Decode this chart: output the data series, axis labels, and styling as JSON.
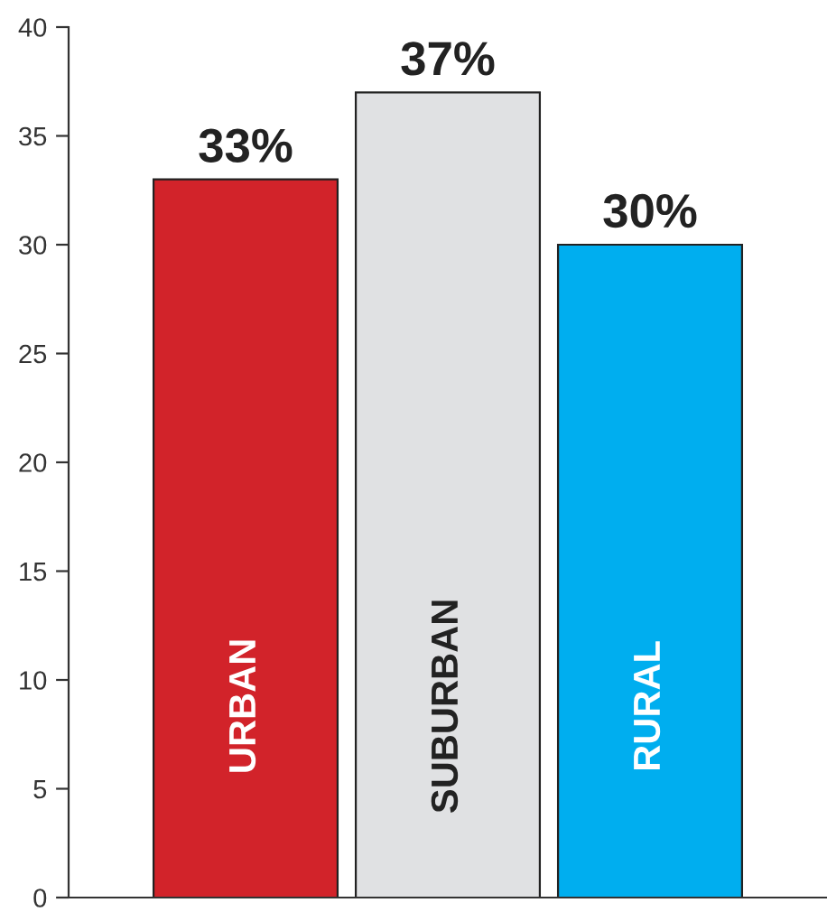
{
  "chart_data": {
    "type": "bar",
    "categories": [
      "URBAN",
      "SUBURBAN",
      "RURAL"
    ],
    "values": [
      33,
      37,
      30
    ],
    "colors": [
      "#d2232a",
      "#e0e1e3",
      "#00aeef"
    ],
    "value_labels": [
      "33%",
      "37%",
      "30%"
    ],
    "ylim": [
      0,
      40
    ],
    "yticks": [
      0,
      5,
      10,
      15,
      20,
      25,
      30,
      35,
      40
    ],
    "grid": false,
    "legend": false
  }
}
